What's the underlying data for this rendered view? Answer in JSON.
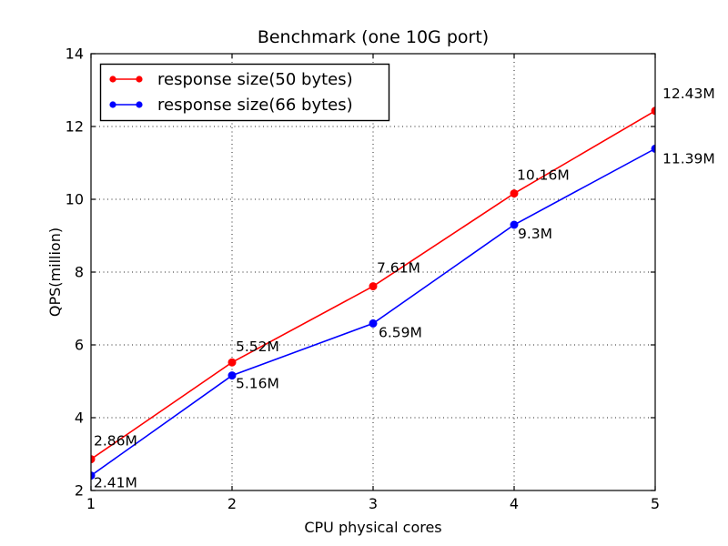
{
  "chart_data": {
    "type": "line",
    "title": "Benchmark (one 10G port)",
    "xlabel": "CPU physical cores",
    "ylabel": "QPS(million)",
    "xlim": [
      1,
      5
    ],
    "ylim": [
      2,
      14
    ],
    "xticks": [
      "1",
      "2",
      "3",
      "4",
      "5"
    ],
    "yticks": [
      "2",
      "4",
      "6",
      "8",
      "10",
      "12",
      "14"
    ],
    "grid": true,
    "grid_style": "dotted",
    "legend_position": "upper left",
    "x": [
      1,
      2,
      3,
      4,
      5
    ],
    "series": [
      {
        "name": "response size(50 bytes)",
        "color": "#ff0000",
        "values": [
          2.86,
          5.52,
          7.61,
          10.16,
          12.43
        ],
        "labels": [
          "2.86M",
          "5.52M",
          "7.61M",
          "10.16M",
          "12.43M"
        ],
        "label_offsets": [
          [
            3,
            -15
          ],
          [
            4,
            -12
          ],
          [
            4,
            -15
          ],
          [
            3,
            -15
          ],
          [
            8,
            -14
          ]
        ]
      },
      {
        "name": "response size(66 bytes)",
        "color": "#0000ff",
        "values": [
          2.41,
          5.16,
          6.59,
          9.3,
          11.39
        ],
        "labels": [
          "2.41M",
          "5.16M",
          "6.59M",
          "9.3M",
          "11.39M"
        ],
        "label_offsets": [
          [
            3,
            13
          ],
          [
            4,
            14
          ],
          [
            6,
            15
          ],
          [
            4,
            15
          ],
          [
            8,
            16
          ]
        ]
      }
    ]
  }
}
